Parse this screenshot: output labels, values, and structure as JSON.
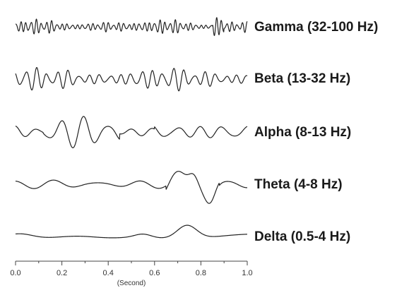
{
  "chart_data": {
    "type": "line",
    "xlabel": "(Second)",
    "xlim": [
      0.0,
      1.0
    ],
    "xticks": [
      "0.0",
      "0.2",
      "0.4",
      "0.6",
      "0.8",
      "1.0"
    ],
    "grid": false,
    "series": [
      {
        "name": "Gamma (32-100 Hz)",
        "frequency_hz": 45,
        "relative_amplitude": 0.55
      },
      {
        "name": "Beta (13-32 Hz)",
        "frequency_hz": 22,
        "relative_amplitude": 0.75
      },
      {
        "name": "Alpha (8-13 Hz)",
        "frequency_hz": 10,
        "relative_amplitude": 1.0
      },
      {
        "name": "Theta (4-8 Hz)",
        "frequency_hz": 5.5,
        "relative_amplitude": 0.9
      },
      {
        "name": "Delta (0.5-4 Hz)",
        "frequency_hz": 1.5,
        "relative_amplitude": 0.95
      }
    ]
  }
}
